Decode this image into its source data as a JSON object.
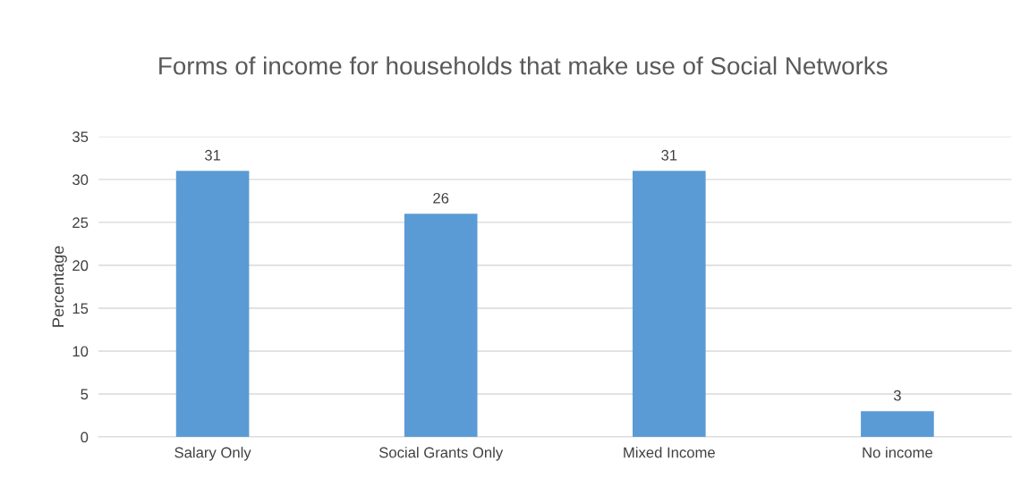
{
  "chart_data": {
    "type": "bar",
    "title": "Forms of income for households that make use of Social Networks",
    "ylabel": "Percentage",
    "categories": [
      "Salary Only",
      "Social Grants Only",
      "Mixed Income",
      "No income"
    ],
    "values": [
      31,
      26,
      31,
      3
    ],
    "color": "#5b9bd5",
    "ylim": [
      0,
      35
    ],
    "yticks": [
      0,
      5,
      10,
      15,
      20,
      25,
      30,
      35
    ],
    "grid": "y",
    "data_labels": true
  }
}
